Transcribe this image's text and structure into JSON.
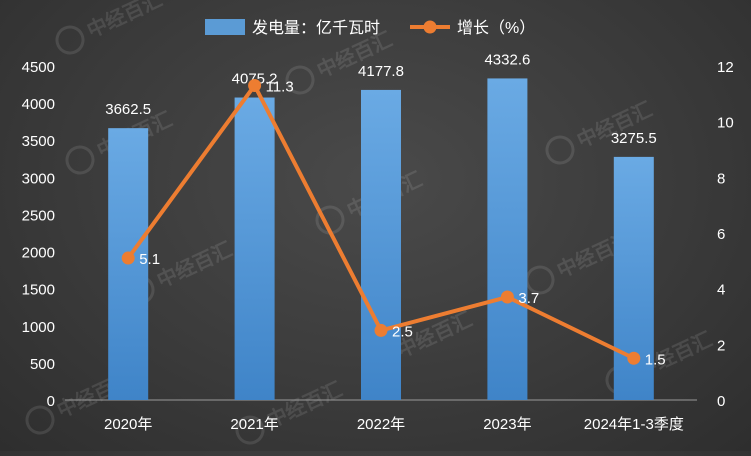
{
  "chart_data": {
    "type": "bar",
    "categories": [
      "2020年",
      "2021年",
      "2022年",
      "2023年",
      "2024年1-3季度"
    ],
    "series": [
      {
        "name": "发电量：亿千瓦时",
        "type": "bar",
        "axis": "left",
        "values": [
          3662.5,
          4075.2,
          4177.8,
          4332.6,
          3275.5
        ]
      },
      {
        "name": "增长（%）",
        "type": "line",
        "axis": "right",
        "values": [
          5.1,
          11.3,
          2.5,
          3.7,
          1.5
        ]
      }
    ],
    "y_left": {
      "min": 0,
      "max": 4500,
      "step": 500
    },
    "y_right": {
      "min": 0,
      "max": 12,
      "step": 2
    },
    "grid": false,
    "legend_position": "top-center",
    "colors": {
      "bar": "#5b9bd5",
      "line": "#ed7d31",
      "text": "#ffffff"
    }
  },
  "watermark": {
    "text": "中经百汇"
  }
}
